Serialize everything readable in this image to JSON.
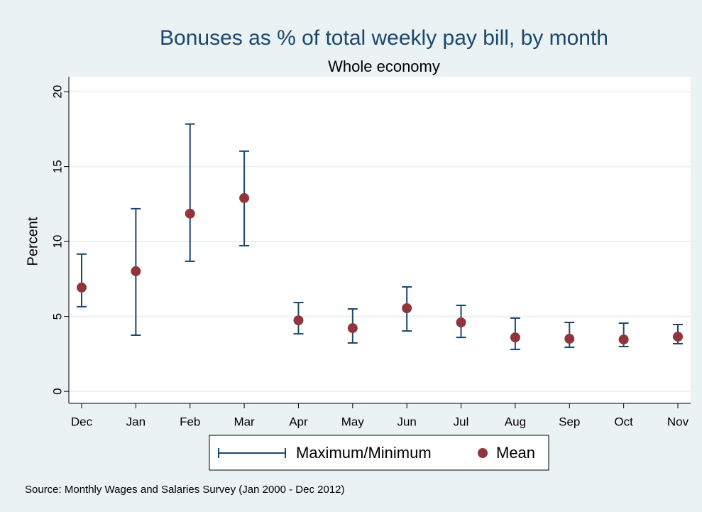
{
  "chart_data": {
    "type": "errorbar",
    "title": "Bonuses as % of total weekly pay bill, by month",
    "subtitle": "Whole economy",
    "y_label": "Percent",
    "note": "Source: Monthly Wages and Salaries Survey (Jan 2000 - Dec 2012)",
    "categories": [
      "Dec",
      "Jan",
      "Feb",
      "Mar",
      "Apr",
      "May",
      "Jun",
      "Jul",
      "Aug",
      "Sep",
      "Oct",
      "Nov"
    ],
    "series": [
      {
        "name": "Maximum/Minimum",
        "color": "#1a476f",
        "max": [
          9.16,
          12.19,
          17.84,
          16.03,
          5.93,
          5.5,
          6.97,
          5.74,
          4.89,
          4.6,
          4.55,
          4.46
        ],
        "min": [
          5.65,
          3.75,
          8.68,
          9.72,
          3.84,
          3.23,
          4.03,
          3.6,
          2.8,
          2.94,
          2.99,
          3.18
        ]
      },
      {
        "name": "Mean",
        "color": "#90353b",
        "values": [
          6.93,
          8.02,
          11.86,
          12.9,
          4.74,
          4.22,
          5.55,
          4.6,
          3.6,
          3.51,
          3.46,
          3.65
        ]
      }
    ],
    "ylim": [
      -0.8,
      21
    ],
    "yticks": [
      0,
      5,
      10,
      15,
      20
    ],
    "grid": true
  }
}
